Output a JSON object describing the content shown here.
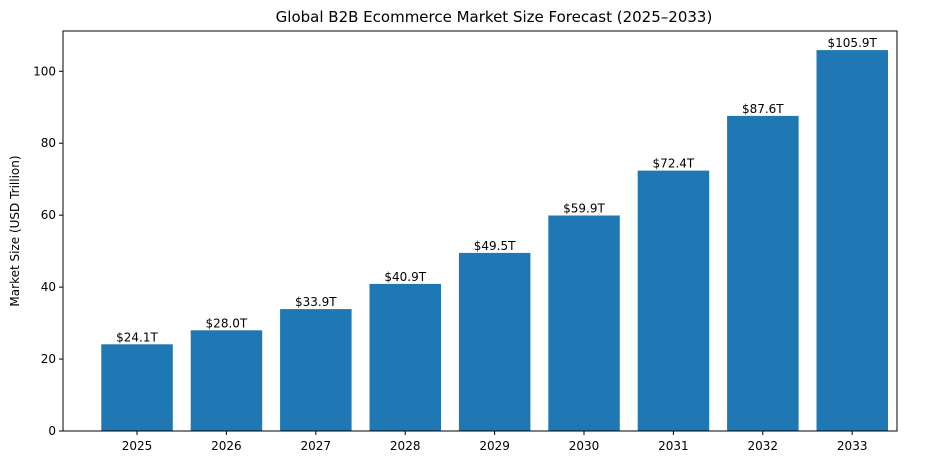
{
  "chart_data": {
    "type": "bar",
    "title": "Global B2B Ecommerce Market Size Forecast (2025–2033)",
    "xlabel": "",
    "ylabel": "Market Size (USD Trillion)",
    "categories": [
      "2025",
      "2026",
      "2027",
      "2028",
      "2029",
      "2030",
      "2031",
      "2032",
      "2033"
    ],
    "values": [
      24.1,
      28.0,
      33.9,
      40.9,
      49.5,
      59.9,
      72.4,
      87.6,
      105.9
    ],
    "data_labels": [
      "$24.1T",
      "$28.0T",
      "$33.9T",
      "$40.9T",
      "$49.5T",
      "$59.9T",
      "$72.4T",
      "$87.6T",
      "$105.9T"
    ],
    "ylim": [
      0,
      111.2
    ],
    "yticks": [
      0,
      20,
      40,
      60,
      80,
      100
    ],
    "grid": false,
    "legend": "none",
    "bar_color": "#1f77b4"
  }
}
